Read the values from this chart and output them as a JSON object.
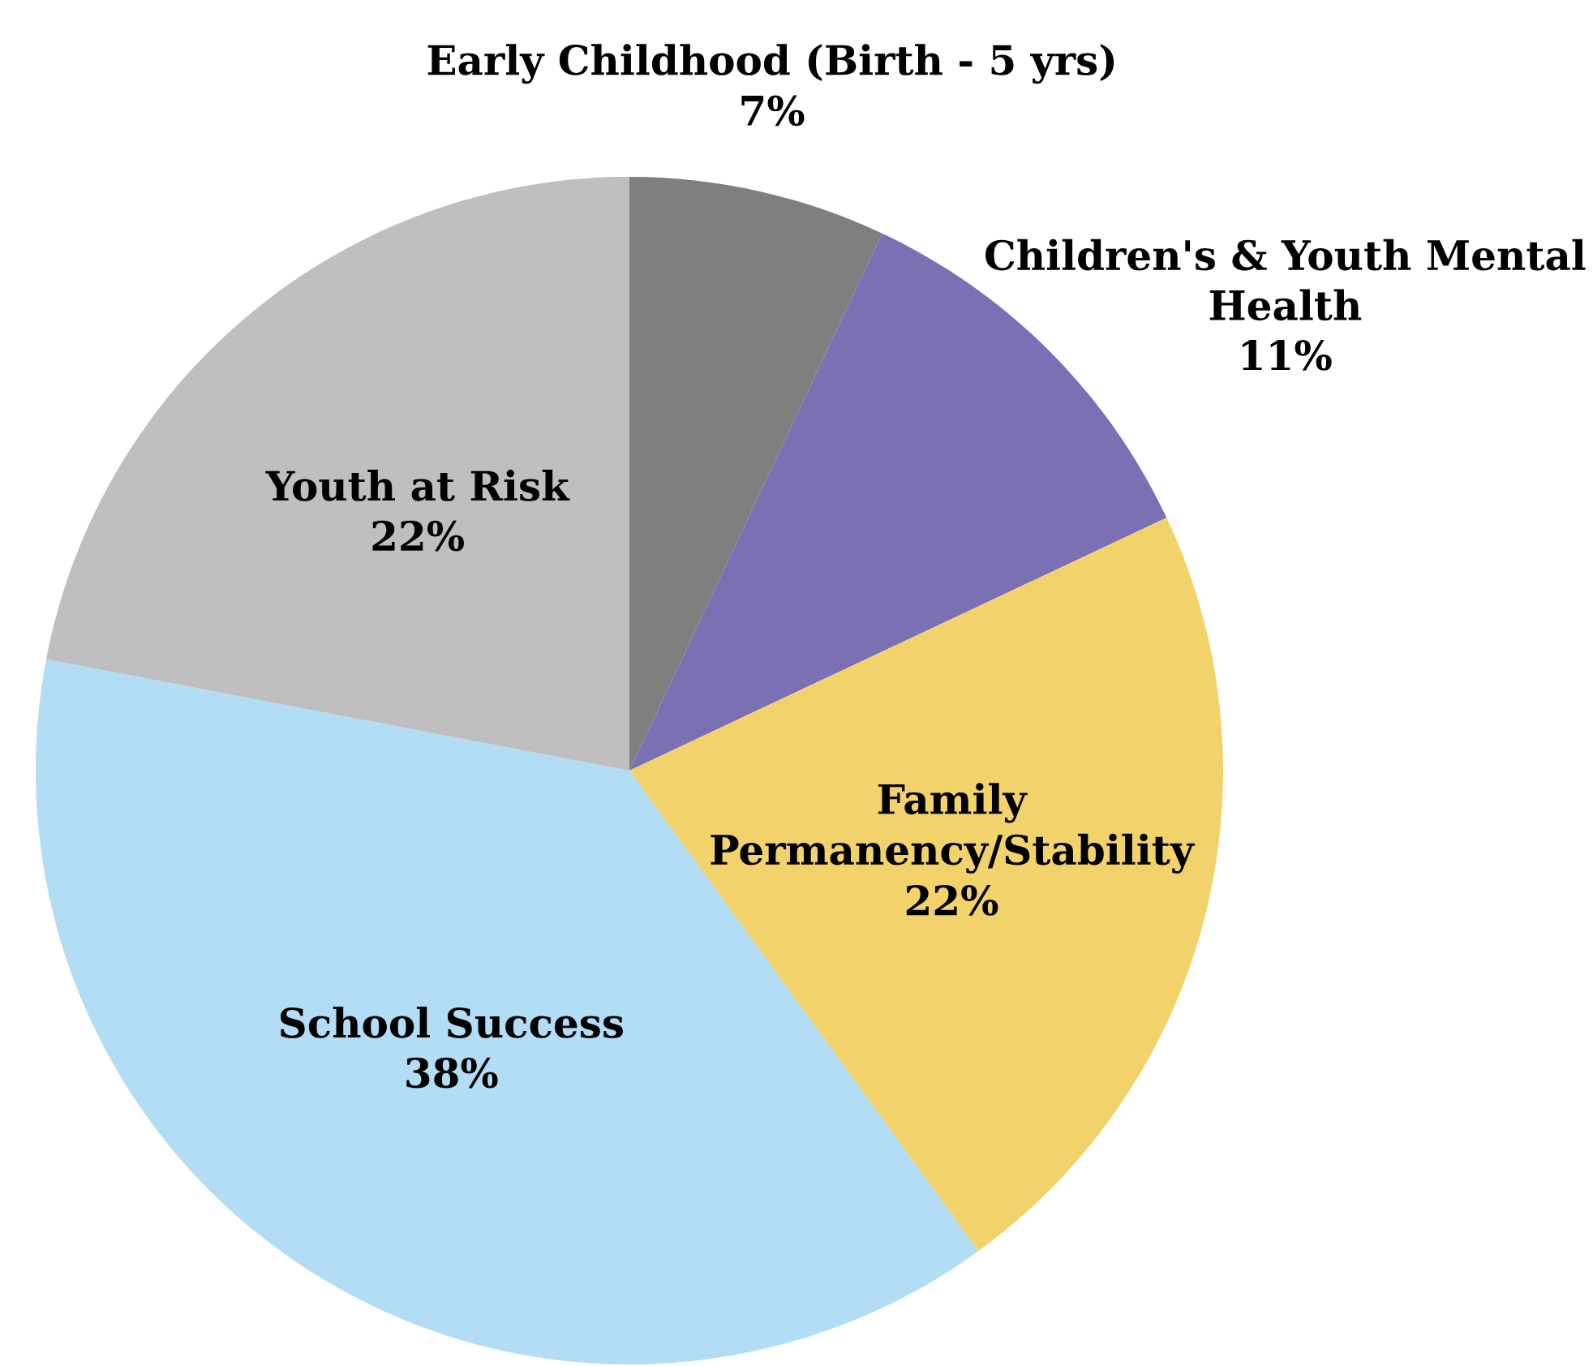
{
  "chart_data": {
    "type": "pie",
    "categories": [
      "Early Childhood (Birth - 5 yrs)",
      "Children's & Youth Mental Health",
      "Family Permanency/Stability",
      "School Success",
      "Youth at Risk"
    ],
    "values": [
      7,
      11,
      22,
      38,
      22
    ],
    "value_labels": [
      "7%",
      "11%",
      "22%",
      "38%",
      "22%"
    ],
    "colors": [
      "#7f7f7f",
      "#7b70b3",
      "#f2d36b",
      "#b3dcf5",
      "#bfbfbf"
    ]
  }
}
